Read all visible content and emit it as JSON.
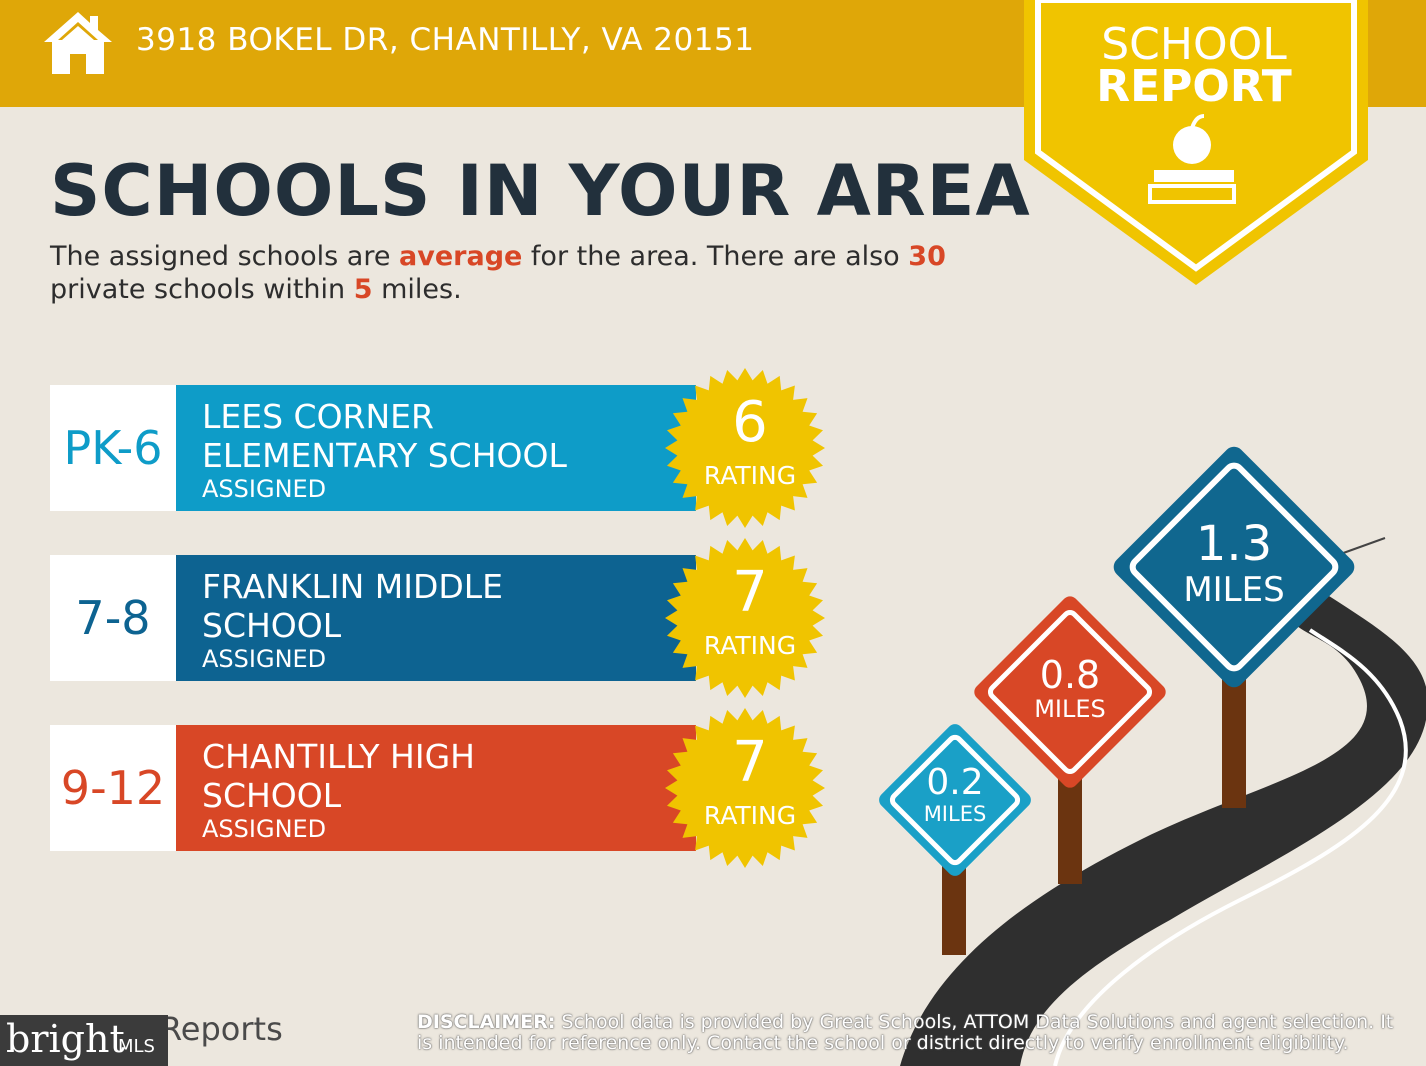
{
  "header": {
    "address": "3918 BOKEL DR, CHANTILLY, VA 20151"
  },
  "badge": {
    "line1": "SCHOOL",
    "line2": "REPORT"
  },
  "title": "SCHOOLS IN YOUR AREA",
  "description": {
    "p1": "The assigned schools are ",
    "rating_word": "average",
    "p2": " for the area. There are also ",
    "private_count": "30",
    "p3": " private schools within ",
    "radius": "5",
    "p4": " miles."
  },
  "schools": [
    {
      "grade": "PK-6",
      "name_line1": "LEES CORNER",
      "name_line2": "ELEMENTARY SCHOOL",
      "status": "ASSIGNED",
      "rating": "6",
      "rating_label": "RATING",
      "color": "#0e9cc8",
      "grade_color": "#0e9cc8"
    },
    {
      "grade": "7-8",
      "name_line1": "FRANKLIN MIDDLE",
      "name_line2": "SCHOOL",
      "status": "ASSIGNED",
      "rating": "7",
      "rating_label": "RATING",
      "color": "#0d6391",
      "grade_color": "#0d6391"
    },
    {
      "grade": "9-12",
      "name_line1": "CHANTILLY HIGH",
      "name_line2": "SCHOOL",
      "status": "ASSIGNED",
      "rating": "7",
      "rating_label": "RATING",
      "color": "#d84726",
      "grade_color": "#d84726"
    }
  ],
  "signs": [
    {
      "value": "0.2",
      "unit": "MILES",
      "color": "#1aa0c7"
    },
    {
      "value": "0.8",
      "unit": "MILES",
      "color": "#d84726"
    },
    {
      "value": "1.3",
      "unit": "MILES",
      "color": "#10678f"
    }
  ],
  "disclaimer": {
    "label": "DISCLAIMER:",
    "text": " School data is provided by Great Schools, ATTOM Data Solutions and agent selection. It is intended for reference only. Contact the school or district directly to verify enrollment eligibility."
  },
  "logo": {
    "reports_text": "Reports",
    "bright": "bright",
    "mls": "MLS"
  },
  "colors": {
    "header": "#dfa708",
    "badge": "#f0c400",
    "background": "#ece7de",
    "title": "#22303c",
    "highlight": "#d84726"
  }
}
